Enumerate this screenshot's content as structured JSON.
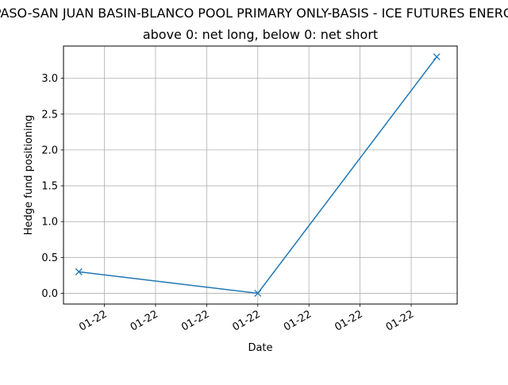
{
  "chart_data": {
    "type": "line",
    "title": "EL PASO-SAN JUAN BASIN-BLANCO POOL PRIMARY ONLY-BASIS - ICE FUTURES ENERGY DIV",
    "subtitle": "above 0: net long, below 0: net short",
    "xlabel": "Date",
    "ylabel": "Hedge fund positioning",
    "x_tick_labels": [
      "01-22",
      "01-22",
      "01-22",
      "01-22",
      "01-22",
      "01-22",
      "01-22"
    ],
    "y_ticks": [
      "0.0",
      "0.5",
      "1.0",
      "1.5",
      "2.0",
      "2.5",
      "3.0"
    ],
    "ylim": [
      -0.15,
      3.45
    ],
    "x_tick_positions": [
      0.5,
      1.5,
      2.5,
      3.5,
      4.5,
      5.5,
      6.5
    ],
    "xlim": [
      -0.3,
      7.4
    ],
    "grid": true,
    "series": [
      {
        "x": [
          0,
          3.5,
          7
        ],
        "values": [
          0.3,
          0.0,
          3.3
        ],
        "color": "#1f77b4",
        "marker": "x"
      }
    ]
  }
}
